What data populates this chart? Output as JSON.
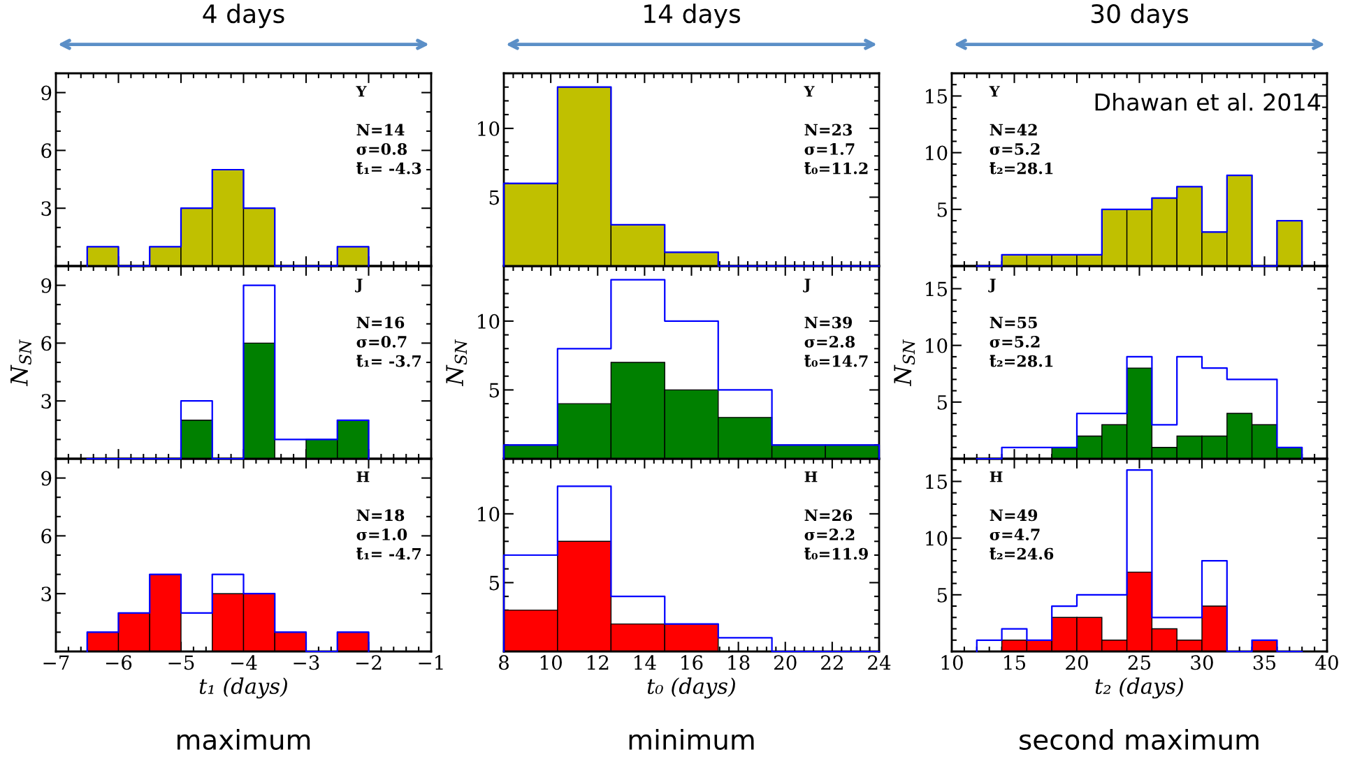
{
  "chart_data": [
    {
      "type": "histogram",
      "title": "4 days",
      "bins": [
        -6.5,
        -6,
        -5.5,
        -5,
        -4.5,
        -4,
        -3.5,
        -3,
        -2.5,
        -2
      ],
      "xlim": [
        -7,
        -1
      ],
      "xticks": [
        {
          "value": -7,
          "label": null
        },
        {
          "value": -6,
          "label": null
        },
        {
          "value": -5,
          "label": null
        },
        {
          "value": -4,
          "label": null
        },
        {
          "value": -3,
          "label": null
        },
        {
          "value": -2,
          "label": null
        },
        {
          "value": -1,
          "label": null
        }
      ],
      "ylim": [
        0,
        10
      ],
      "yticks": [
        3,
        6,
        9
      ],
      "tick_labels": "y",
      "series": [
        {
          "color": "#c0c000",
          "values": [
            1,
            0,
            1,
            3,
            5,
            3,
            0,
            0,
            1
          ]
        },
        {
          "type": "step",
          "color": "#0000ff",
          "x": [
            -6.5,
            -6.5,
            -6,
            -5.5,
            -5,
            -4.5,
            -4,
            -3.5,
            -3,
            -2.5,
            -2
          ],
          "values": [
            0,
            1,
            0,
            1,
            3,
            5,
            3,
            0,
            0,
            1,
            0
          ]
        }
      ],
      "annotations": [
        "Y",
        "N=14",
        "σ=0.8",
        "t̄₁= -4.3"
      ]
    },
    {
      "type": "histogram",
      "title": "14 days",
      "bins": [
        8,
        10.29,
        12.57,
        14.86,
        17.14,
        19.43,
        21.71,
        24
      ],
      "xlim": [
        8,
        24
      ],
      "xticks": [
        8,
        10,
        12,
        14,
        16,
        18,
        20,
        22,
        24
      ],
      "ylim": [
        0,
        14
      ],
      "yticks": [
        5,
        10
      ],
      "tick_labels": "y",
      "series": [
        {
          "color": "#c0c000",
          "values": [
            6,
            13,
            3,
            1,
            0,
            0,
            0
          ]
        },
        {
          "type": "step",
          "color": "#0000ff",
          "x": [
            8,
            8,
            10.29,
            12.57,
            14.86,
            17.14,
            19.43,
            21.71,
            24
          ],
          "values": [
            0,
            6,
            13,
            3,
            1,
            0,
            0,
            0,
            0
          ]
        }
      ],
      "annotations": [
        "Y",
        "N=23",
        "σ=1.7",
        "t̄₀=11.2"
      ]
    },
    {
      "type": "histogram",
      "title": "30 days",
      "bins": [
        12,
        14,
        16,
        18,
        20,
        22,
        24,
        26,
        28,
        30,
        32,
        34,
        36,
        38
      ],
      "xlim": [
        10,
        40
      ],
      "xticks": [
        10,
        15,
        20,
        25,
        30,
        35,
        40
      ],
      "ylim": [
        0,
        17
      ],
      "yticks": [
        5,
        10,
        15
      ],
      "tick_labels": "y",
      "series": [
        {
          "color": "#c0c000",
          "values": [
            0,
            1,
            1,
            1,
            1,
            5,
            5,
            6,
            7,
            3,
            8,
            0,
            4
          ]
        },
        {
          "type": "step",
          "color": "#0000ff",
          "x": [
            12,
            12,
            14,
            16,
            18,
            20,
            22,
            24,
            26,
            28,
            30,
            32,
            34,
            36,
            38
          ],
          "values": [
            0,
            0,
            1,
            1,
            1,
            1,
            5,
            5,
            6,
            7,
            3,
            8,
            0,
            4,
            0
          ]
        }
      ],
      "annotations": [
        "Y",
        "N=42",
        "σ=5.2",
        "t̄₂=28.1",
        "Dhawan et al. 2014"
      ]
    },
    {
      "type": "histogram",
      "ylabel": "N$_{SN}$",
      "bins": [
        -6.5,
        -6,
        -5.5,
        -5,
        -4.5,
        -4,
        -3.5,
        -3,
        -2.5,
        -2
      ],
      "xlim": [
        -7,
        -1
      ],
      "xticks": [
        {
          "value": -7,
          "label": null
        },
        {
          "value": -6,
          "label": null
        },
        {
          "value": -5,
          "label": null
        },
        {
          "value": -4,
          "label": null
        },
        {
          "value": -3,
          "label": null
        },
        {
          "value": -2,
          "label": null
        },
        {
          "value": -1,
          "label": null
        }
      ],
      "ylim": [
        0,
        10
      ],
      "yticks": [
        3,
        6,
        9
      ],
      "tick_labels": "y",
      "series": [
        {
          "color": "#008000",
          "values": [
            0,
            0,
            0,
            2,
            0,
            6,
            0,
            1,
            2
          ]
        },
        {
          "type": "step",
          "color": "#0000ff",
          "x": [
            -6.5,
            -6.5,
            -6,
            -5.5,
            -5,
            -4.5,
            -4,
            -3.5,
            -3,
            -2.5,
            -2
          ],
          "values": [
            0,
            0,
            0,
            0,
            3,
            0,
            9,
            1,
            1,
            2,
            0
          ]
        }
      ],
      "annotations": [
        "J",
        "N=16",
        "σ=0.7",
        "t̄₁= -3.7"
      ]
    },
    {
      "type": "histogram",
      "ylabel": "N$_{SN}$",
      "bins": [
        8,
        10.29,
        12.57,
        14.86,
        17.14,
        19.43,
        21.71,
        24
      ],
      "xlim": [
        8,
        24
      ],
      "xticks": [
        8,
        10,
        12,
        14,
        16,
        18,
        20,
        22,
        24
      ],
      "ylim": [
        0,
        14
      ],
      "yticks": [
        5,
        10
      ],
      "tick_labels": "y",
      "series": [
        {
          "color": "#008000",
          "values": [
            1,
            4,
            7,
            5,
            3,
            1,
            1
          ]
        },
        {
          "type": "step",
          "color": "#0000ff",
          "x": [
            8,
            8,
            10.29,
            12.57,
            14.86,
            17.14,
            19.43,
            21.71,
            24
          ],
          "values": [
            0,
            1,
            8,
            13,
            10,
            5,
            1,
            1,
            0
          ]
        }
      ],
      "annotations": [
        "J",
        "N=39",
        "σ=2.8",
        "t̄₀=14.7"
      ]
    },
    {
      "type": "histogram",
      "ylabel": "N$_{SN}$",
      "bins": [
        12,
        14,
        16,
        18,
        20,
        22,
        24,
        26,
        28,
        30,
        32,
        34,
        36,
        38
      ],
      "xlim": [
        10,
        40
      ],
      "xticks": [
        10,
        15,
        20,
        25,
        30,
        35,
        40
      ],
      "ylim": [
        0,
        17
      ],
      "yticks": [
        5,
        10,
        15
      ],
      "tick_labels": "y",
      "series": [
        {
          "color": "#008000",
          "values": [
            0,
            0,
            0,
            1,
            2,
            3,
            8,
            1,
            2,
            2,
            4,
            3,
            1
          ]
        },
        {
          "type": "step",
          "color": "#0000ff",
          "x": [
            12,
            12,
            14,
            16,
            18,
            20,
            22,
            24,
            26,
            28,
            30,
            32,
            34,
            36,
            38
          ],
          "values": [
            0,
            0,
            1,
            1,
            1,
            4,
            4,
            9,
            3,
            9,
            8,
            7,
            7,
            1,
            0
          ]
        }
      ],
      "annotations": [
        "J",
        "N=55",
        "σ=5.2",
        "t̄₂=28.1"
      ]
    },
    {
      "type": "histogram",
      "xlabel": "t₁ (days)",
      "bins": [
        -6.5,
        -6,
        -5.5,
        -5,
        -4.5,
        -4,
        -3.5,
        -3,
        -2.5,
        -2
      ],
      "xlim": [
        -7,
        -1
      ],
      "xticks": [
        {
          "value": -7,
          "label": "−7"
        },
        {
          "value": -6,
          "label": "−6"
        },
        {
          "value": -5,
          "label": "−5"
        },
        {
          "value": -4,
          "label": "−4"
        },
        {
          "value": -3,
          "label": "−3"
        },
        {
          "value": -2,
          "label": "−2"
        },
        {
          "value": -1,
          "label": "−1"
        }
      ],
      "ylim": [
        0,
        10
      ],
      "yticks": [
        3,
        6,
        9
      ],
      "series": [
        {
          "color": "#ff0000",
          "values": [
            1,
            2,
            4,
            0,
            3,
            3,
            1,
            0,
            1
          ]
        },
        {
          "type": "step",
          "color": "#0000ff",
          "x": [
            -6.5,
            -6.5,
            -6,
            -5.5,
            -5,
            -4.5,
            -4,
            -3.5,
            -3,
            -2.5,
            -2
          ],
          "values": [
            0,
            1,
            2,
            4,
            2,
            4,
            3,
            1,
            0,
            1,
            0
          ]
        }
      ],
      "annotations": [
        "H",
        "N=18",
        "σ=1.0",
        "t̄₁= -4.7",
        "maximum"
      ]
    },
    {
      "type": "histogram",
      "xlabel": "t₀ (days)",
      "bins": [
        8,
        10.29,
        12.57,
        14.86,
        17.14,
        19.43,
        21.71,
        24
      ],
      "xlim": [
        8,
        24
      ],
      "xticks": [
        8,
        10,
        12,
        14,
        16,
        18,
        20,
        22,
        24
      ],
      "ylim": [
        0,
        14
      ],
      "yticks": [
        5,
        10
      ],
      "series": [
        {
          "color": "#ff0000",
          "values": [
            3,
            8,
            2,
            2,
            0,
            0,
            0
          ]
        },
        {
          "type": "step",
          "color": "#0000ff",
          "x": [
            8,
            8,
            10.29,
            12.57,
            14.86,
            17.14,
            19.43,
            21.71,
            24
          ],
          "values": [
            0,
            7,
            12,
            4,
            2,
            1,
            0,
            0,
            0
          ]
        }
      ],
      "annotations": [
        "H",
        "N=26",
        "σ=2.2",
        "t̄₀=11.9",
        "minimum"
      ]
    },
    {
      "type": "histogram",
      "xlabel": "t₂ (days)",
      "bins": [
        12,
        14,
        16,
        18,
        20,
        22,
        24,
        26,
        28,
        30,
        32,
        34,
        36,
        38
      ],
      "xlim": [
        10,
        40
      ],
      "xticks": [
        10,
        15,
        20,
        25,
        30,
        35,
        40
      ],
      "ylim": [
        0,
        17
      ],
      "yticks": [
        5,
        10,
        15
      ],
      "series": [
        {
          "color": "#ff0000",
          "values": [
            0,
            1,
            1,
            3,
            3,
            1,
            7,
            2,
            1,
            4,
            0,
            1,
            0
          ]
        },
        {
          "type": "step",
          "color": "#0000ff",
          "x": [
            12,
            12,
            14,
            16,
            18,
            20,
            22,
            24,
            26,
            28,
            30,
            32,
            34,
            36,
            38
          ],
          "values": [
            0,
            1,
            2,
            1,
            4,
            5,
            5,
            16,
            3,
            3,
            8,
            0,
            1,
            0,
            0
          ]
        }
      ],
      "annotations": [
        "H",
        "N=49",
        "σ=4.7",
        "t̄₂=24.6",
        "second maximum"
      ]
    }
  ]
}
